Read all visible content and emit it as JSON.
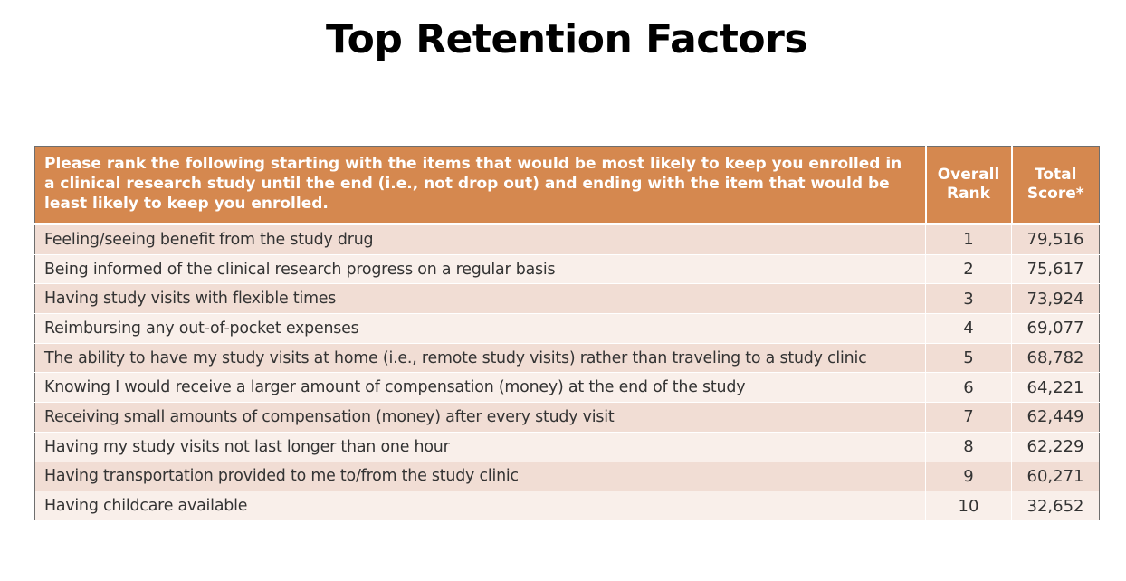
{
  "page": {
    "title": "Top Retention Factors"
  },
  "table": {
    "headers": {
      "item": "Please rank the following starting with the items that would be most likely to keep you enrolled in a clinical research study until the end (i.e., not drop out) and ending with the item that would be least likely to keep you enrolled.",
      "rank_line1": "Overall",
      "rank_line2": "Rank",
      "score_line1": "Total",
      "score_line2": "Score*"
    },
    "rows": [
      {
        "item": "Feeling/seeing benefit from the study drug",
        "rank": "1",
        "score": "79,516"
      },
      {
        "item": "Being informed of the clinical research progress on a regular basis",
        "rank": "2",
        "score": "75,617"
      },
      {
        "item": "Having study visits with flexible times",
        "rank": "3",
        "score": "73,924"
      },
      {
        "item": "Reimbursing any out-of-pocket expenses",
        "rank": "4",
        "score": "69,077"
      },
      {
        "item": "The ability to have my study visits at home (i.e., remote study visits) rather than traveling to a study clinic",
        "rank": "5",
        "score": "68,782"
      },
      {
        "item": "Knowing I would receive a larger amount of compensation (money) at the end of the study",
        "rank": "6",
        "score": "64,221"
      },
      {
        "item": "Receiving small amounts of compensation (money) after every study visit",
        "rank": "7",
        "score": "62,449"
      },
      {
        "item": "Having my study visits not last longer than one hour",
        "rank": "8",
        "score": "62,229"
      },
      {
        "item": "Having transportation provided to me to/from the study clinic",
        "rank": "9",
        "score": "60,271"
      },
      {
        "item": "Having childcare available",
        "rank": "10",
        "score": "32,652"
      }
    ]
  },
  "colors": {
    "header_bg": "#d5884f",
    "row_odd_bg": "#f1ddd4",
    "row_even_bg": "#f9efea"
  }
}
